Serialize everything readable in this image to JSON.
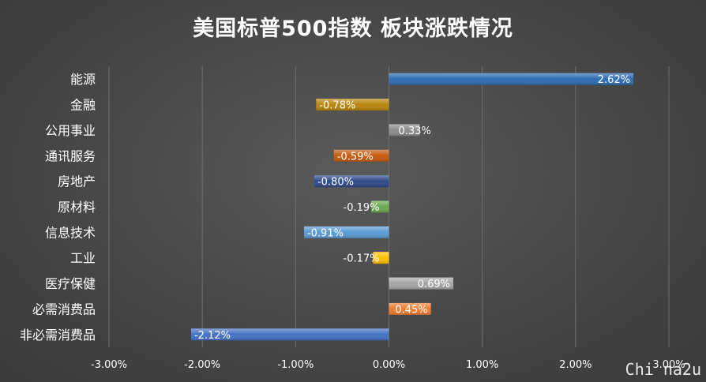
{
  "chart_data": {
    "type": "bar",
    "orientation": "horizontal",
    "title": "美国标普500指数 板块涨跌情况",
    "categories": [
      "能源",
      "金融",
      "公用事业",
      "通讯服务",
      "房地产",
      "原材料",
      "信息技术",
      "工业",
      "医疗保健",
      "必需消费品",
      "非必需消费品"
    ],
    "values": [
      2.62,
      -0.78,
      0.33,
      -0.59,
      -0.8,
      -0.19,
      -0.91,
      -0.17,
      0.69,
      0.45,
      -2.12
    ],
    "data_labels": [
      "2.62%",
      "-0.78%",
      "0.33%",
      "-0.59%",
      "-0.80%",
      "-0.19%",
      "-0.91%",
      "-0.17%",
      "0.69%",
      "0.45%",
      "-2.12%"
    ],
    "bar_colors": [
      "#2e6db4",
      "#b8860b",
      "#8c8c8c",
      "#c55a11",
      "#2f4a8a",
      "#6aa84f",
      "#5b9bd5",
      "#ffc000",
      "#a6a6a6",
      "#ed7d31",
      "#4472c4"
    ],
    "xlim": [
      -3,
      3
    ],
    "x_ticks": [
      -3,
      -2,
      -1,
      0,
      1,
      2,
      3
    ],
    "x_tick_labels": [
      "-3.00%",
      "-2.00%",
      "-1.00%",
      "0.00%",
      "1.00%",
      "2.00%",
      "3.00%"
    ],
    "grid": true,
    "legend": "none"
  },
  "watermark": "Chi na2u"
}
